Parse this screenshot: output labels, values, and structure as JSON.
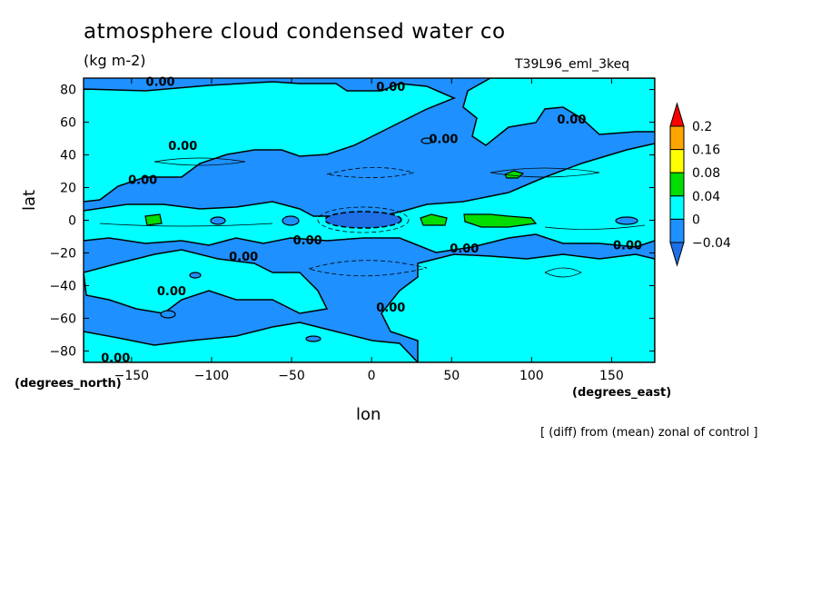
{
  "chart_data": {
    "type": "contour",
    "title": "atmosphere cloud condensed water co",
    "units": "(kg m-2)",
    "run_label": "T39L96_eml_3keq",
    "xlabel": "lon",
    "ylabel": "lat",
    "x_unit_label": "(degrees_east)",
    "y_unit_label": "(degrees_north)",
    "note": "[ (diff) from (mean) zonal of control ]",
    "xlim": [
      -180,
      177
    ],
    "ylim": [
      -87,
      87
    ],
    "x_ticks": [
      -150,
      -100,
      -50,
      0,
      50,
      100,
      150
    ],
    "x_tick_labels": [
      "−150",
      "−100",
      "−50",
      "0",
      "50",
      "100",
      "150"
    ],
    "y_ticks": [
      80,
      60,
      40,
      20,
      0,
      -20,
      -40,
      -60,
      -80
    ],
    "y_tick_labels": [
      "80",
      "60",
      "40",
      "20",
      "0",
      "−20",
      "−40",
      "−60",
      "−80"
    ],
    "colorbar": {
      "levels": [
        -0.04,
        0,
        0.04,
        0.08,
        0.16,
        0.2
      ],
      "labels": [
        "−0.04",
        "0",
        "0.04",
        "0.08",
        "0.16",
        "0.2"
      ],
      "colors": {
        "below": "#1e6fe6",
        "bins": [
          "#1e90ff",
          "#00ffff",
          "#00dd00",
          "#ffff00",
          "#ffa500"
        ],
        "above": "#ff0000"
      }
    },
    "contour_labels": [
      {
        "text": "0.00",
        "lon": -132,
        "lat": 85
      },
      {
        "text": "0.00",
        "lon": 12,
        "lat": 82
      },
      {
        "text": "0.00",
        "lon": 125,
        "lat": 62
      },
      {
        "text": "0.00",
        "lon": 45,
        "lat": 50
      },
      {
        "text": "0.00",
        "lon": -118,
        "lat": 46
      },
      {
        "text": "0.00",
        "lon": -143,
        "lat": 25
      },
      {
        "text": "0.00",
        "lon": -40,
        "lat": -12
      },
      {
        "text": "0.00",
        "lon": 58,
        "lat": -17
      },
      {
        "text": "0.00",
        "lon": 160,
        "lat": -15
      },
      {
        "text": "0.00",
        "lon": -80,
        "lat": -22
      },
      {
        "text": "0.00",
        "lon": -125,
        "lat": -43
      },
      {
        "text": "0.00",
        "lon": 12,
        "lat": -53
      },
      {
        "text": "0.00",
        "lon": -160,
        "lat": -84
      }
    ],
    "regions_above_0_04": [
      {
        "lon": [
          -137,
          -129
        ],
        "lat": [
          -1,
          3
        ]
      },
      {
        "lon": [
          31,
          47
        ],
        "lat": [
          -1,
          3
        ]
      },
      {
        "lon": [
          59,
          96
        ],
        "lat": [
          -1,
          4
        ]
      },
      {
        "lon": [
          84,
          93
        ],
        "lat": [
          23,
          27
        ]
      }
    ],
    "regions_below_minus_0_04": [
      {
        "lon": [
          -28,
          18
        ],
        "lat": [
          -4,
          5
        ]
      }
    ]
  }
}
